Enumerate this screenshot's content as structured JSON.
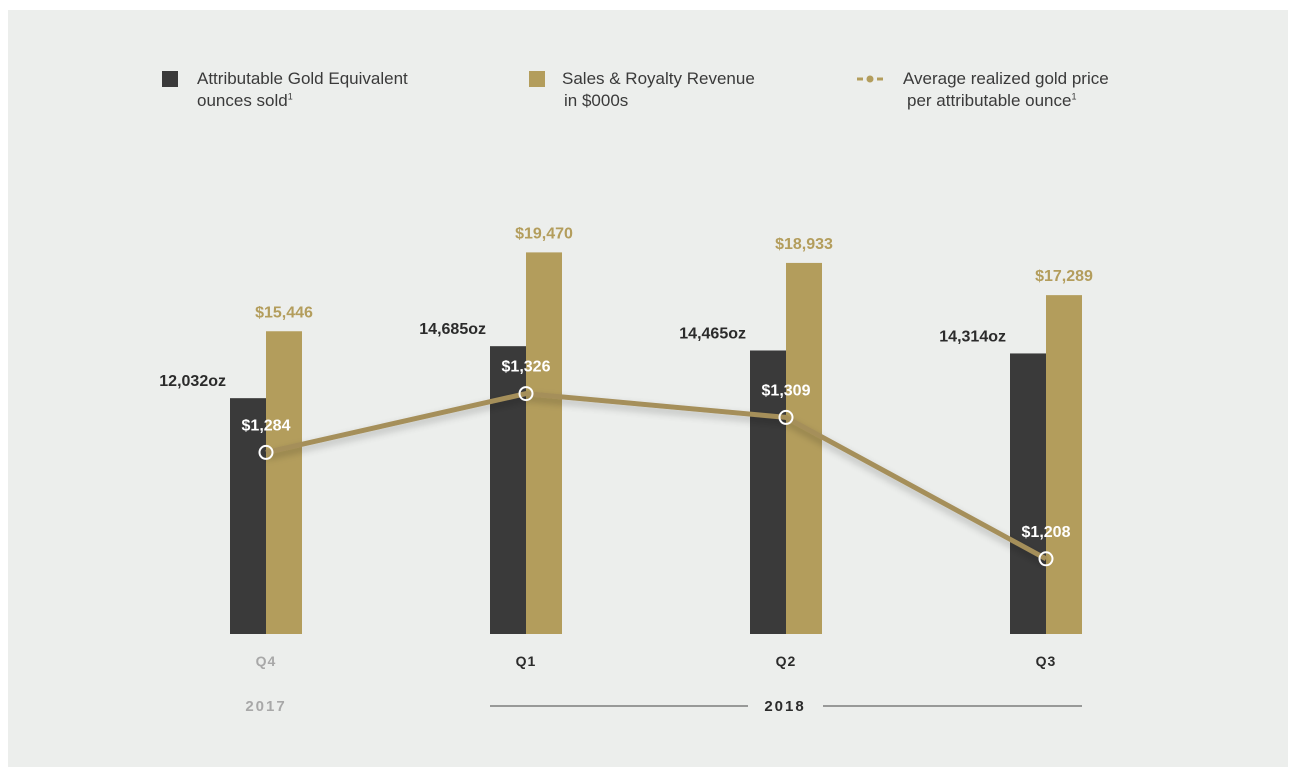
{
  "legend": {
    "ounces": {
      "line1": "Attributable Gold Equivalent",
      "line2": "ounces sold",
      "sup": "1",
      "icon": "dark-square-icon"
    },
    "revenue": {
      "line1": "Sales & Royalty Revenue",
      "line2": "in $000s",
      "icon": "gold-square-icon"
    },
    "price": {
      "line1": "Average realized gold price",
      "line2": "per attributable ounce",
      "sup": "1",
      "icon": "line-marker-icon"
    }
  },
  "colors": {
    "background": "#eceeec",
    "ounces_bar": "#3a3a3a",
    "revenue_bar": "#b39d5c",
    "price_line": "#a58f5a",
    "revenue_label": "#b39d5c",
    "muted_label": "#a8a8a8",
    "dark_label": "#2b2b2b"
  },
  "chart_data": {
    "type": "bar",
    "categories": [
      "Q4",
      "Q1",
      "Q2",
      "Q3"
    ],
    "years": [
      {
        "label": "2017",
        "categories": [
          "Q4"
        ]
      },
      {
        "label": "2018",
        "categories": [
          "Q1",
          "Q2",
          "Q3"
        ]
      }
    ],
    "series": [
      {
        "name": "Attributable Gold Equivalent ounces sold",
        "type": "bar",
        "values": [
          12032,
          14685,
          14465,
          14314
        ],
        "labels": [
          "12,032oz",
          "14,685oz",
          "14,465oz",
          "14,314oz"
        ]
      },
      {
        "name": "Sales & Royalty Revenue in $000s",
        "type": "bar",
        "values": [
          15446,
          19470,
          18933,
          17289
        ],
        "labels": [
          "$15,446",
          "$19,470",
          "$18,933",
          "$17,289"
        ]
      },
      {
        "name": "Average realized gold price per attributable ounce",
        "type": "line",
        "values": [
          1284,
          1326,
          1309,
          1208
        ],
        "labels": [
          "$1,284",
          "$1,326",
          "$1,309",
          "$1,208"
        ]
      }
    ],
    "ylim": [
      0,
      20000
    ],
    "line_ylim": [
      1100,
      1400
    ],
    "grid": false,
    "legend_position": "top"
  }
}
